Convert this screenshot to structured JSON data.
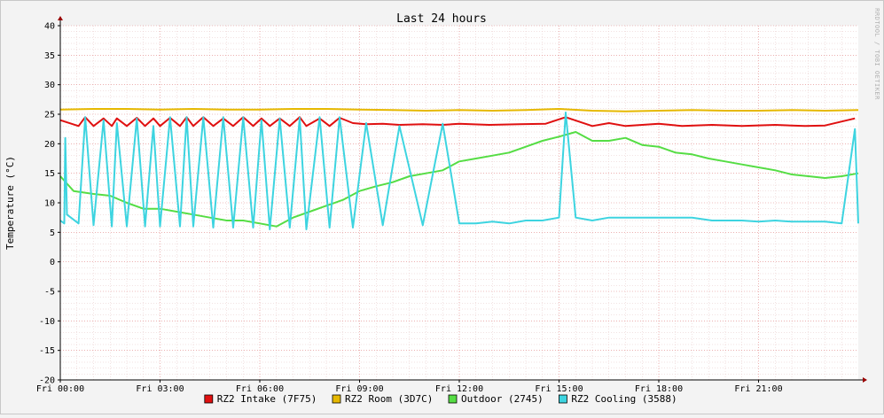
{
  "chart_data": {
    "type": "line",
    "title": "Last 24 hours",
    "ylabel": "Temperature (°C)",
    "watermark": "RRDTOOL / TOBI OETIKER",
    "ylim": [
      -20,
      40
    ],
    "yticks": [
      -20,
      -15,
      -10,
      -5,
      0,
      5,
      10,
      15,
      20,
      25,
      30,
      35,
      40
    ],
    "xlim_hours": [
      0,
      24
    ],
    "xticks": [
      {
        "hour": 0,
        "label": "Fri 00:00"
      },
      {
        "hour": 3,
        "label": "Fri 03:00"
      },
      {
        "hour": 6,
        "label": "Fri 06:00"
      },
      {
        "hour": 9,
        "label": "Fri 09:00"
      },
      {
        "hour": 12,
        "label": "Fri 12:00"
      },
      {
        "hour": 15,
        "label": "Fri 15:00"
      },
      {
        "hour": 18,
        "label": "Fri 18:00"
      },
      {
        "hour": 21,
        "label": "Fri 21:00"
      }
    ],
    "grid": true,
    "legend_position": "bottom",
    "series": [
      {
        "name": "RZ2 Intake (7F75)",
        "color": "#e01010",
        "x": [
          0.0,
          0.55,
          0.75,
          1.0,
          1.3,
          1.55,
          1.7,
          2.0,
          2.3,
          2.55,
          2.8,
          3.0,
          3.3,
          3.6,
          3.8,
          4.0,
          4.3,
          4.6,
          4.9,
          5.2,
          5.5,
          5.8,
          6.05,
          6.3,
          6.6,
          6.9,
          7.2,
          7.4,
          7.8,
          8.1,
          8.4,
          8.8,
          9.2,
          9.7,
          10.2,
          10.9,
          11.5,
          12.0,
          12.9,
          13.8,
          14.6,
          15.2,
          16.0,
          16.5,
          17.0,
          18.0,
          18.7,
          19.6,
          20.5,
          21.5,
          22.4,
          23.0,
          23.9
        ],
        "y": [
          24.0,
          23.0,
          24.5,
          23.0,
          24.3,
          23.0,
          24.3,
          23.0,
          24.4,
          23.0,
          24.3,
          23.0,
          24.4,
          23.0,
          24.5,
          23.0,
          24.5,
          23.0,
          24.3,
          23.0,
          24.5,
          23.0,
          24.3,
          23.0,
          24.3,
          23.0,
          24.5,
          23.0,
          24.3,
          23.0,
          24.4,
          23.5,
          23.3,
          23.4,
          23.2,
          23.3,
          23.2,
          23.4,
          23.2,
          23.3,
          23.4,
          24.5,
          23.0,
          23.5,
          23.0,
          23.4,
          23.0,
          23.2,
          23.0,
          23.2,
          23.0,
          23.1,
          24.3
        ]
      },
      {
        "name": "RZ2 Room (3D7C)",
        "color": "#e6b800",
        "x": [
          0,
          1,
          2,
          3,
          4,
          5,
          6,
          7,
          8,
          9,
          10,
          11,
          12,
          13,
          14,
          15,
          16,
          17,
          18,
          19,
          20,
          21,
          22,
          23,
          24
        ],
        "y": [
          25.8,
          25.9,
          25.9,
          25.8,
          25.9,
          25.8,
          25.8,
          25.9,
          25.9,
          25.8,
          25.7,
          25.6,
          25.7,
          25.6,
          25.7,
          25.9,
          25.6,
          25.5,
          25.6,
          25.7,
          25.6,
          25.6,
          25.7,
          25.6,
          25.7
        ]
      },
      {
        "name": "Outdoor (2745)",
        "color": "#55dd44",
        "x": [
          0.0,
          0.4,
          1.0,
          1.5,
          2.0,
          2.5,
          3.0,
          3.5,
          4.0,
          4.5,
          5.0,
          5.5,
          6.0,
          6.5,
          7.0,
          7.5,
          8.0,
          8.5,
          9.0,
          9.5,
          10.0,
          10.5,
          11.0,
          11.5,
          12.0,
          12.5,
          13.0,
          13.5,
          14.0,
          14.5,
          15.0,
          15.5,
          16.0,
          16.5,
          17.0,
          17.5,
          18.0,
          18.5,
          19.0,
          19.5,
          20.0,
          20.5,
          21.0,
          21.5,
          22.0,
          22.5,
          23.0,
          23.5,
          24.0
        ],
        "y": [
          14.5,
          12.0,
          11.5,
          11.2,
          10.0,
          9.0,
          9.0,
          8.5,
          8.0,
          7.5,
          7.0,
          7.0,
          6.5,
          6.0,
          7.5,
          8.5,
          9.5,
          10.5,
          12.0,
          12.8,
          13.5,
          14.5,
          15.0,
          15.5,
          17.0,
          17.5,
          18.0,
          18.5,
          19.5,
          20.5,
          21.2,
          22.0,
          20.5,
          20.5,
          21.0,
          19.8,
          19.5,
          18.5,
          18.2,
          17.5,
          17.0,
          16.5,
          16.0,
          15.5,
          14.8,
          14.5,
          14.2,
          14.5,
          15.0
        ]
      },
      {
        "name": "RZ2 Cooling (3588)",
        "color": "#3dd4e0",
        "x": [
          0.0,
          0.12,
          0.15,
          0.2,
          0.55,
          0.75,
          1.0,
          1.3,
          1.55,
          1.7,
          2.0,
          2.3,
          2.55,
          2.8,
          3.0,
          3.3,
          3.6,
          3.8,
          4.0,
          4.3,
          4.6,
          4.9,
          5.2,
          5.5,
          5.8,
          6.05,
          6.3,
          6.6,
          6.9,
          7.2,
          7.4,
          7.8,
          8.1,
          8.4,
          8.8,
          9.2,
          9.7,
          10.2,
          10.9,
          11.5,
          12.0,
          12.5,
          13.0,
          13.5,
          14.0,
          14.5,
          15.0,
          15.2,
          15.5,
          16.0,
          16.5,
          17.0,
          17.5,
          18.0,
          18.7,
          19.0,
          19.6,
          20.0,
          20.5,
          21.0,
          21.5,
          22.0,
          22.4,
          23.0,
          23.5,
          23.9,
          24.0
        ],
        "y": [
          7.0,
          6.5,
          21.0,
          8.0,
          6.5,
          24.5,
          6.2,
          24.0,
          6.0,
          23.5,
          6.0,
          24.3,
          6.0,
          23.0,
          6.0,
          24.5,
          6.0,
          24.5,
          6.0,
          24.5,
          5.8,
          24.5,
          5.8,
          24.5,
          5.8,
          24.0,
          5.5,
          24.3,
          5.8,
          24.4,
          5.5,
          24.5,
          5.8,
          24.5,
          5.8,
          23.5,
          6.2,
          23.0,
          6.2,
          23.4,
          6.5,
          6.5,
          6.8,
          6.5,
          7.0,
          7.0,
          7.5,
          25.3,
          7.5,
          7.0,
          7.5,
          7.5,
          7.5,
          7.5,
          7.5,
          7.5,
          7.0,
          7.0,
          7.0,
          6.8,
          7.0,
          6.8,
          6.8,
          6.8,
          6.5,
          22.5,
          6.5
        ]
      }
    ]
  }
}
